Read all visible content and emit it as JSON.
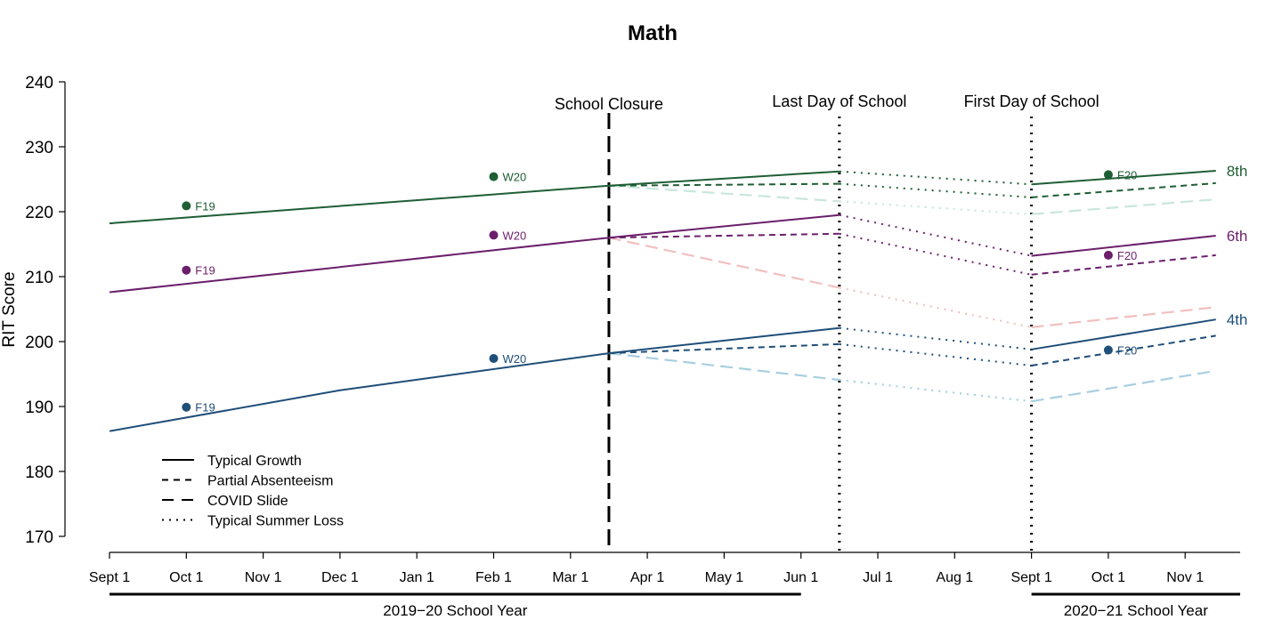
{
  "chart_data": {
    "type": "line",
    "title": "Math",
    "ylabel": "RIT Score",
    "ylim": [
      170,
      240
    ],
    "yticks": [
      170,
      180,
      190,
      200,
      210,
      220,
      230,
      240
    ],
    "x_ticks": [
      "Sept 1",
      "Oct 1",
      "Nov 1",
      "Dec 1",
      "Jan 1",
      "Feb 1",
      "Mar 1",
      "Apr 1",
      "May 1",
      "Jun 1",
      "Jul 1",
      "Aug 1",
      "Sept 1",
      "Oct 1",
      "Nov 1"
    ],
    "x_unit": "months since Sept 1, 2019",
    "grid": false,
    "legend_position": "bottom-left",
    "legend": [
      {
        "label": "Typical Growth",
        "style": "solid"
      },
      {
        "label": "Partial Absenteeism",
        "style": "dashed"
      },
      {
        "label": "COVID Slide",
        "style": "longdash"
      },
      {
        "label": "Typical Summer Loss",
        "style": "dotted"
      }
    ],
    "events": [
      {
        "label": "School Closure",
        "x": 6.5,
        "style": "longdash"
      },
      {
        "label": "Last Day of School",
        "x": 9.5,
        "style": "dotted"
      },
      {
        "label": "First Day of School",
        "x": 12,
        "style": "dotted"
      }
    ],
    "school_years": [
      {
        "label": "2019−20 School Year",
        "x_range": [
          0,
          9
        ]
      },
      {
        "label": "2020−21 School Year",
        "x_range": [
          12,
          15
        ]
      }
    ],
    "grades": [
      {
        "name": "8th",
        "color": "#1e5e35",
        "light": "#c9e6dd",
        "typical": [
          [
            0,
            218.2
          ],
          [
            6.5,
            224.0
          ],
          [
            9.5,
            226.2
          ]
        ],
        "typical_next": [
          [
            12,
            224.2
          ],
          [
            14.4,
            226.3
          ]
        ],
        "partial": [
          [
            6.5,
            224.0
          ],
          [
            9.5,
            224.3
          ]
        ],
        "partial_summer": [
          [
            9.5,
            224.3
          ],
          [
            12,
            222.2
          ]
        ],
        "partial_next": [
          [
            12,
            222.2
          ],
          [
            14.4,
            224.4
          ]
        ],
        "covid": [
          [
            6.5,
            224.0
          ],
          [
            9.5,
            221.6
          ]
        ],
        "covid_summer": [
          [
            9.5,
            221.6
          ],
          [
            12,
            219.6
          ]
        ],
        "covid_next": [
          [
            12,
            219.6
          ],
          [
            14.4,
            221.9
          ]
        ],
        "summer_typical": [
          [
            9.5,
            226.2
          ],
          [
            12,
            224.2
          ]
        ],
        "points": [
          {
            "label": "F19",
            "x": 1,
            "y": 220.9
          },
          {
            "label": "W20",
            "x": 5,
            "y": 225.4
          },
          {
            "label": "F20",
            "x": 13,
            "y": 225.7
          }
        ]
      },
      {
        "name": "6th",
        "color": "#6b1f6b",
        "light": "#f2bfbf",
        "typical": [
          [
            0,
            207.6
          ],
          [
            6.5,
            216.0
          ],
          [
            9.5,
            219.5
          ]
        ],
        "typical_next": [
          [
            12,
            213.2
          ],
          [
            14.4,
            216.3
          ]
        ],
        "partial": [
          [
            6.5,
            216.0
          ],
          [
            9.5,
            216.6
          ]
        ],
        "partial_summer": [
          [
            9.5,
            216.6
          ],
          [
            12,
            210.3
          ]
        ],
        "partial_next": [
          [
            12,
            210.3
          ],
          [
            14.4,
            213.3
          ]
        ],
        "covid": [
          [
            6.5,
            216.0
          ],
          [
            9.5,
            208.3
          ]
        ],
        "covid_summer": [
          [
            9.5,
            208.3
          ],
          [
            12,
            202.2
          ]
        ],
        "covid_next": [
          [
            12,
            202.2
          ],
          [
            14.4,
            205.3
          ]
        ],
        "summer_typical": [
          [
            9.5,
            219.5
          ],
          [
            12,
            213.2
          ]
        ],
        "points": [
          {
            "label": "F19",
            "x": 1,
            "y": 211.0
          },
          {
            "label": "W20",
            "x": 5,
            "y": 216.4
          },
          {
            "label": "F20",
            "x": 13,
            "y": 213.3
          }
        ]
      },
      {
        "name": "4th",
        "color": "#1f4e79",
        "light": "#a8cfe0",
        "typical": [
          [
            0,
            186.2
          ],
          [
            3,
            192.5
          ],
          [
            6.5,
            198.2
          ],
          [
            9.5,
            202.1
          ]
        ],
        "typical_next": [
          [
            12,
            198.8
          ],
          [
            14.4,
            203.4
          ]
        ],
        "partial": [
          [
            6.5,
            198.2
          ],
          [
            9.5,
            199.6
          ]
        ],
        "partial_summer": [
          [
            9.5,
            199.6
          ],
          [
            12,
            196.3
          ]
        ],
        "partial_next": [
          [
            12,
            196.3
          ],
          [
            14.4,
            200.9
          ]
        ],
        "covid": [
          [
            6.5,
            198.2
          ],
          [
            9.5,
            194.1
          ]
        ],
        "covid_summer": [
          [
            9.5,
            194.1
          ],
          [
            12,
            190.8
          ]
        ],
        "covid_next": [
          [
            12,
            190.8
          ],
          [
            14.4,
            195.5
          ]
        ],
        "summer_typical": [
          [
            9.5,
            202.1
          ],
          [
            12,
            198.8
          ]
        ],
        "points": [
          {
            "label": "F19",
            "x": 1,
            "y": 189.9
          },
          {
            "label": "W20",
            "x": 5,
            "y": 197.4
          },
          {
            "label": "F20",
            "x": 13,
            "y": 198.7
          }
        ]
      }
    ]
  }
}
